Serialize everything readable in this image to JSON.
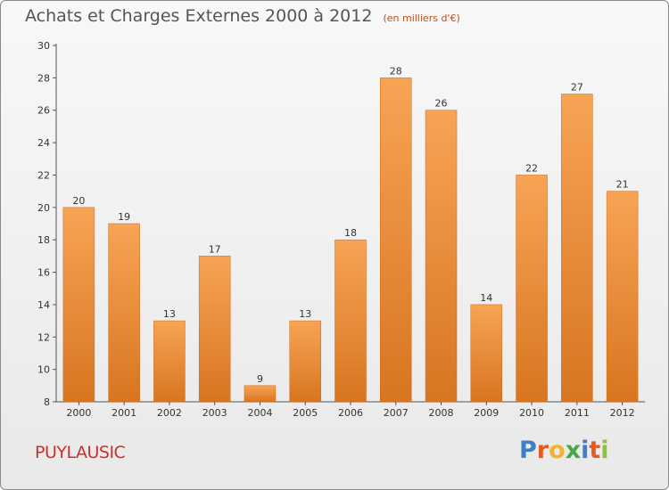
{
  "header": {
    "title": "Achats et Charges Externes 2000 à 2012",
    "subtitle": "(en milliers d'€)"
  },
  "footer": {
    "town": "PUYLAUSIC",
    "logo": [
      "P",
      "r",
      "o",
      "x",
      "i",
      "t",
      "i"
    ]
  },
  "colors": {
    "bar_top": "#f7a455",
    "bar_bottom": "#d87520",
    "title": "#555555",
    "town": "#c8322a"
  },
  "chart_data": {
    "type": "bar",
    "categories": [
      "2000",
      "2001",
      "2002",
      "2003",
      "2004",
      "2005",
      "2006",
      "2007",
      "2008",
      "2009",
      "2010",
      "2011",
      "2012"
    ],
    "values": [
      20,
      19,
      13,
      17,
      9,
      13,
      18,
      28,
      26,
      14,
      22,
      27,
      21
    ],
    "title": "Achats et Charges Externes 2000 à 2012",
    "subtitle": "(en milliers d'€)",
    "xlabel": "",
    "ylabel": "",
    "ylim": [
      8,
      30
    ],
    "yticks": [
      8,
      10,
      12,
      14,
      16,
      18,
      20,
      22,
      24,
      26,
      28,
      30
    ],
    "grid": false,
    "legend": "none"
  }
}
